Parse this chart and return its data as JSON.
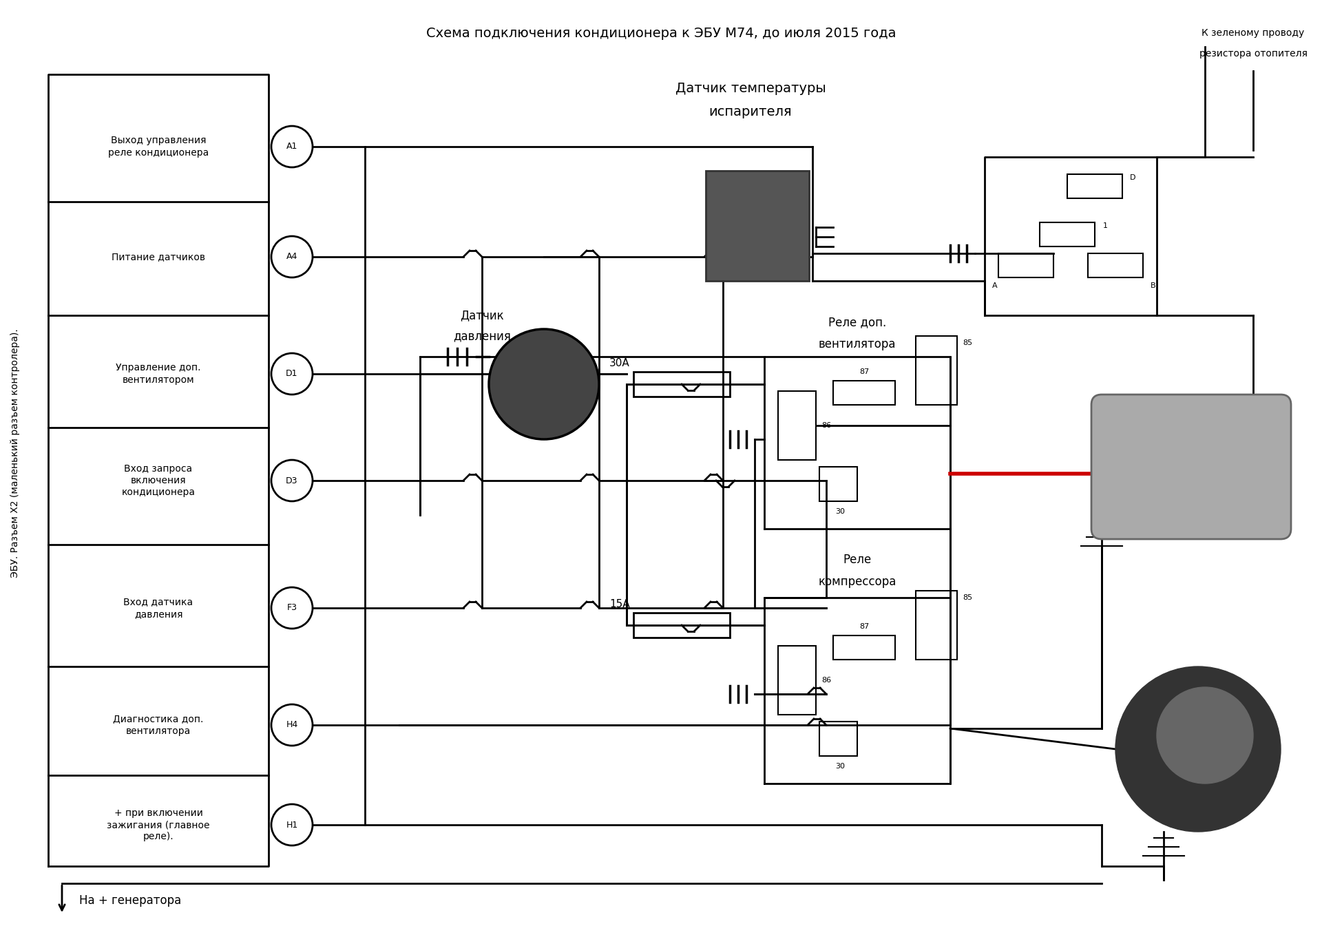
{
  "title": "Схема подключения кондиционера к ЭБУ М74, до июля 2015 года",
  "side_label": "ЭБУ. Разъем Х2 (маленький разъем контролера).",
  "bottom_label": "На + генератора",
  "background": "#ffffff",
  "line_color": "#000000",
  "text_color": "#000000",
  "pin_labels": {
    "A1": "Выход управления\nреле кондиционера",
    "A4": "Питание датчиков",
    "D1": "Управление доп.\nвентилятором",
    "D3": "Вход запроса\nвключения\nкондиционера",
    "F3": "Вход датчика\nдавления",
    "H4": "Диагностика доп.\nвентилятора",
    "H1": "+ при включении\nзажигания (главное\nреле)."
  }
}
